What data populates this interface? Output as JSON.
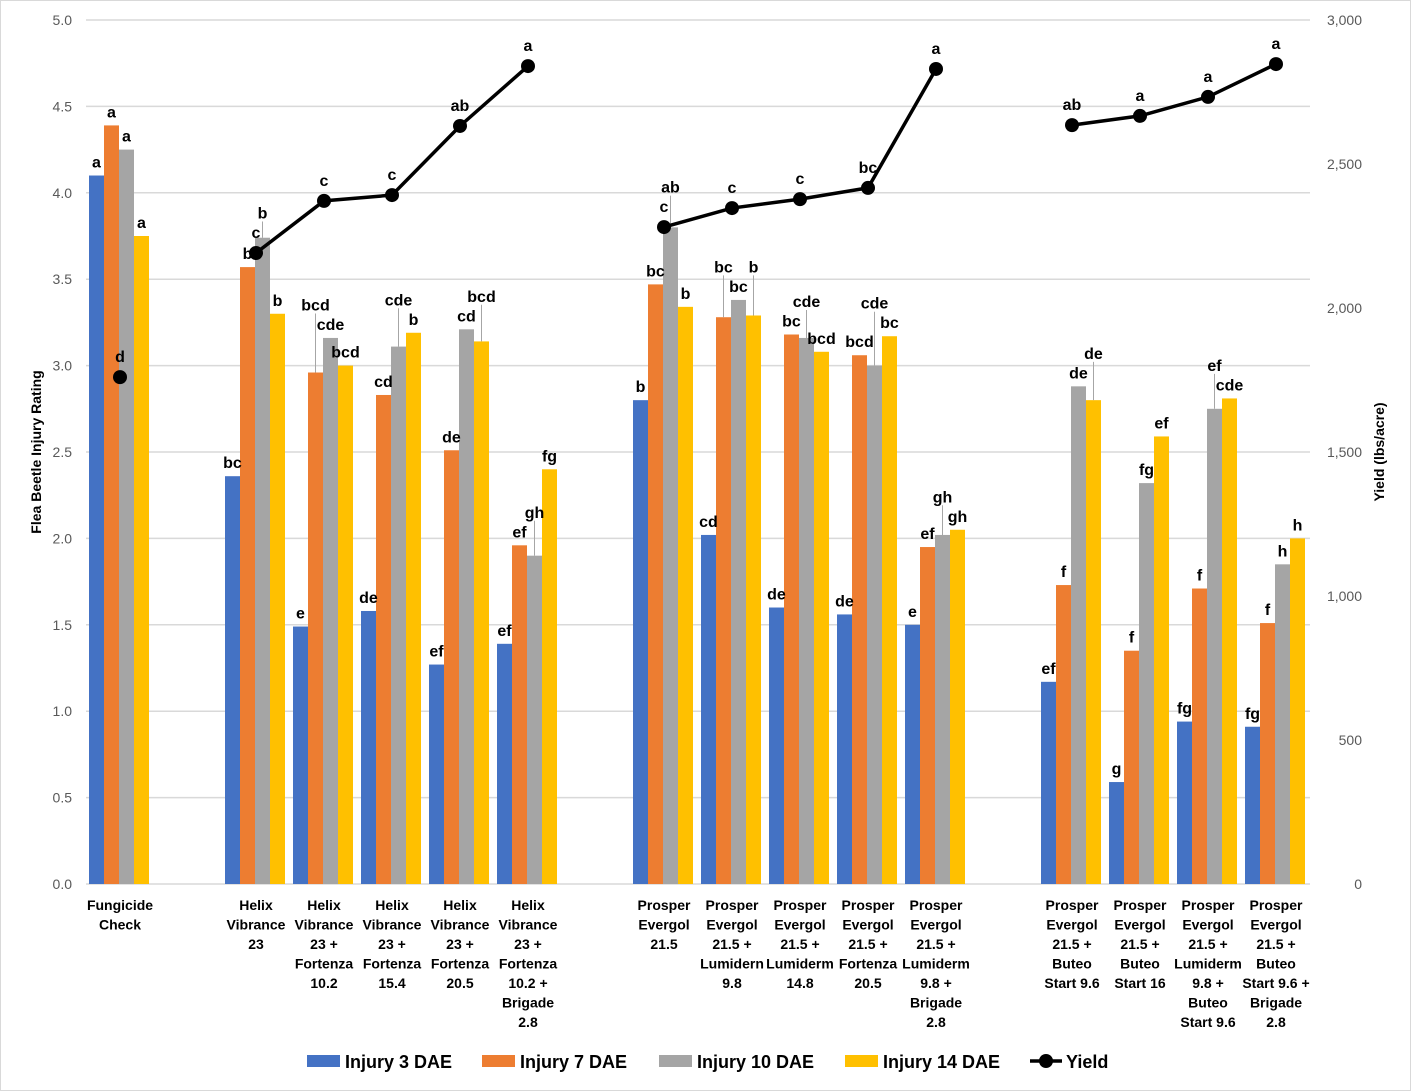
{
  "chart_data": {
    "type": "bar",
    "left_axis": {
      "label": "Flea Beetle Injury Rating",
      "ylim": [
        0,
        5
      ],
      "ticks": [
        "0.0",
        "0.5",
        "1.0",
        "1.5",
        "2.0",
        "2.5",
        "3.0",
        "3.5",
        "4.0",
        "4.5",
        "5.0"
      ]
    },
    "right_axis": {
      "label": "Yield (lbs/acre)",
      "ylim": [
        0,
        3000
      ],
      "ticks": [
        "0",
        "500",
        "1,000",
        "1,500",
        "2,000",
        "2,500",
        "3,000"
      ]
    },
    "grid": true,
    "legend_position": "bottom",
    "categories": [
      [
        "Fungicide",
        "Check"
      ],
      [
        "Helix",
        "Vibrance",
        "23"
      ],
      [
        "Helix",
        "Vibrance",
        "23 +",
        "Fortenza",
        "10.2"
      ],
      [
        "Helix",
        "Vibrance",
        "23 +",
        "Fortenza",
        "15.4"
      ],
      [
        "Helix",
        "Vibrance",
        "23 +",
        "Fortenza",
        "20.5"
      ],
      [
        "Helix",
        "Vibrance",
        "23 +",
        "Fortenza",
        "10.2 +",
        "Brigade",
        "2.8"
      ],
      [
        "Prosper",
        "Evergol",
        "21.5"
      ],
      [
        "Prosper",
        "Evergol",
        "21.5 +",
        "Lumidern",
        "9.8"
      ],
      [
        "Prosper",
        "Evergol",
        "21.5 +",
        "Lumiderm",
        "14.8"
      ],
      [
        "Prosper",
        "Evergol",
        "21.5 +",
        "Fortenza",
        "20.5"
      ],
      [
        "Prosper",
        "Evergol",
        "21.5 +",
        "Lumiderm",
        "9.8 +",
        "Brigade",
        "2.8"
      ],
      [
        "Prosper",
        "Evergol",
        "21.5 +",
        "Buteo",
        "Start 9.6"
      ],
      [
        "Prosper",
        "Evergol",
        "21.5 +",
        "Buteo",
        "Start 16"
      ],
      [
        "Prosper",
        "Evergol",
        "21.5 +",
        "Lumiderm",
        "9.8 +",
        "Buteo",
        "Start 9.6"
      ],
      [
        "Prosper",
        "Evergol",
        "21.5 +",
        "Buteo",
        "Start 9.6 +",
        "Brigade",
        "2.8"
      ]
    ],
    "series": [
      {
        "name": "Injury 3 DAE",
        "color": "#4472C4",
        "axis": "left",
        "values": [
          4.1,
          2.36,
          1.49,
          1.58,
          1.27,
          1.39,
          2.8,
          2.02,
          1.6,
          1.56,
          1.5,
          1.17,
          0.59,
          0.94,
          0.91
        ],
        "letters": [
          "a",
          "bc",
          "e",
          "de",
          "ef",
          "ef",
          "b",
          "cd",
          "de",
          "de",
          "e",
          "ef",
          "g",
          "fg",
          "fg"
        ]
      },
      {
        "name": "Injury 7 DAE",
        "color": "#ED7D31",
        "axis": "left",
        "values": [
          4.39,
          3.57,
          2.96,
          2.83,
          2.51,
          1.96,
          3.47,
          3.28,
          3.18,
          3.06,
          1.95,
          1.73,
          1.35,
          1.71,
          1.51
        ],
        "letters": [
          "a",
          "b",
          "bcd",
          "cd",
          "de",
          "ef",
          "bc",
          "bc",
          "bc",
          "bcd",
          "ef",
          "f",
          "f",
          "f",
          "f"
        ]
      },
      {
        "name": "Injury 10 DAE",
        "color": "#A5A5A5",
        "axis": "left",
        "values": [
          4.25,
          3.74,
          3.16,
          3.11,
          3.21,
          1.9,
          3.8,
          3.38,
          3.16,
          3.0,
          2.02,
          2.88,
          2.32,
          2.75,
          1.85
        ],
        "letters": [
          "a",
          "b",
          "cde",
          "cde",
          "cd",
          "gh",
          "ab",
          "bc",
          "cde",
          "cde",
          "gh",
          "de",
          "fg",
          "ef",
          "h"
        ]
      },
      {
        "name": "Injury 14 DAE",
        "color": "#FFC000",
        "axis": "left",
        "values": [
          3.75,
          3.3,
          3.0,
          3.19,
          3.14,
          2.4,
          3.34,
          3.29,
          3.08,
          3.17,
          2.05,
          2.8,
          2.59,
          2.81,
          2.0
        ],
        "letters": [
          "a",
          "b",
          "bcd",
          "b",
          "bcd",
          "fg",
          "b",
          "b",
          "bcd",
          "bc",
          "gh",
          "de",
          "ef",
          "cde",
          "h"
        ]
      },
      {
        "name": "Yield",
        "type": "line",
        "color": "#000000",
        "axis": "right",
        "values": [
          1760,
          2191,
          2372,
          2392,
          2632,
          2840,
          2281,
          2347,
          2378,
          2417,
          2830,
          2635,
          2667,
          2733,
          2847
        ],
        "letters": [
          "d",
          "c",
          "c",
          "c",
          "ab",
          "a",
          "c",
          "c",
          "c",
          "bc",
          "a",
          "ab",
          "a",
          "a",
          "a"
        ]
      }
    ]
  }
}
